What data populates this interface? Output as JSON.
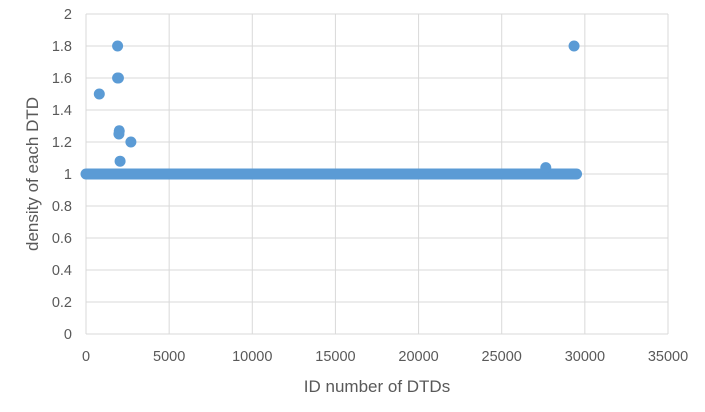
{
  "chart_data": {
    "type": "scatter",
    "xlabel": "ID number of DTDs",
    "ylabel": "density of each DTD",
    "xlim": [
      0,
      35000
    ],
    "ylim": [
      0,
      2
    ],
    "x_ticks": [
      "0",
      "5000",
      "10000",
      "15000",
      "20000",
      "25000",
      "30000",
      "35000"
    ],
    "y_ticks": [
      "0",
      "0.2",
      "0.4",
      "0.6",
      "0.8",
      "1",
      "1.2",
      "1.4",
      "1.6",
      "1.8",
      "2"
    ],
    "grid": true,
    "legend": "none",
    "marker_color": "#5b9bd5",
    "baseline": {
      "y": 1,
      "x_from": 0,
      "x_to": 29500
    },
    "series": [
      {
        "points": [
          [
            800,
            1.5
          ],
          [
            1900,
            1.8
          ],
          [
            1900,
            1.6
          ],
          [
            1950,
            1.6
          ],
          [
            2000,
            1.27
          ],
          [
            1980,
            1.25
          ],
          [
            2050,
            1.08
          ],
          [
            2700,
            1.2
          ],
          [
            27650,
            1.04
          ],
          [
            29350,
            1.8
          ]
        ]
      }
    ]
  }
}
